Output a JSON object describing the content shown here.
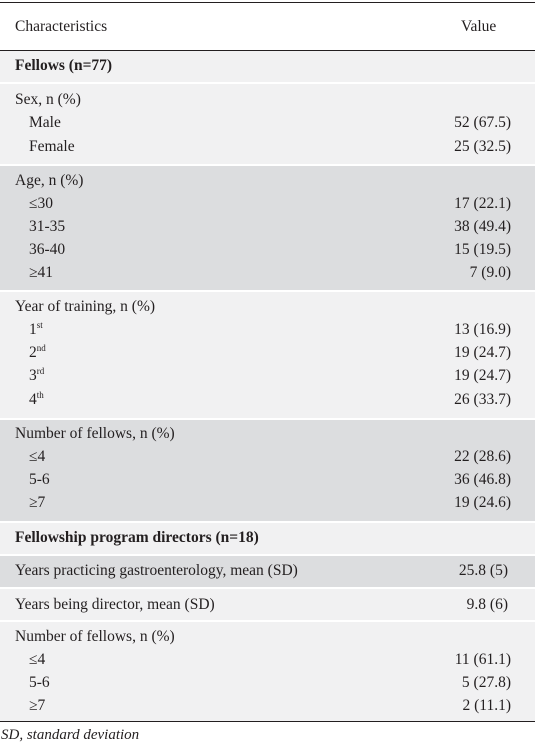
{
  "table": {
    "header": {
      "characteristics": "Characteristics",
      "value": "Value"
    },
    "fellows_title": "Fellows (n=77)",
    "sex": {
      "label": "Sex, n (%)",
      "rows": [
        {
          "label": "Male",
          "value": "52 (67.5)"
        },
        {
          "label": "Female",
          "value": "25 (32.5)"
        }
      ]
    },
    "age": {
      "label": "Age, n (%)",
      "rows": [
        {
          "label": "≤30",
          "value": "17 (22.1)"
        },
        {
          "label": "31-35",
          "value": "38 (49.4)"
        },
        {
          "label": "36-40",
          "value": "15 (19.5)"
        },
        {
          "label": "≥41",
          "value": "7 (9.0)"
        }
      ]
    },
    "year": {
      "label": "Year of training, n (%)",
      "rows": [
        {
          "num": "1",
          "sup": "st",
          "value": "13 (16.9)"
        },
        {
          "num": "2",
          "sup": "nd",
          "value": "19 (24.7)"
        },
        {
          "num": "3",
          "sup": "rd",
          "value": "19 (24.7)"
        },
        {
          "num": "4",
          "sup": "th",
          "value": "26 (33.7)"
        }
      ]
    },
    "fellows_count": {
      "label": "Number of fellows, n (%)",
      "rows": [
        {
          "label": "≤4",
          "value": "22 (28.6)"
        },
        {
          "label": "5-6",
          "value": "36 (46.8)"
        },
        {
          "label": "≥7",
          "value": "19 (24.6)"
        }
      ]
    },
    "directors_title": "Fellowship program directors (n=18)",
    "years_practicing": {
      "label": "Years practicing gastroenterology, mean (SD)",
      "value": "25.8 (5)"
    },
    "years_director": {
      "label": "Years being director, mean (SD)",
      "value": "9.8 (6)"
    },
    "directors_fellows_count": {
      "label": "Number of fellows, n (%)",
      "rows": [
        {
          "label": "≤4",
          "value": "11 (61.1)"
        },
        {
          "label": "5-6",
          "value": "5 (27.8)"
        },
        {
          "label": "≥7",
          "value": "2 (11.1)"
        }
      ]
    }
  },
  "footnote": "SD, standard deviation"
}
